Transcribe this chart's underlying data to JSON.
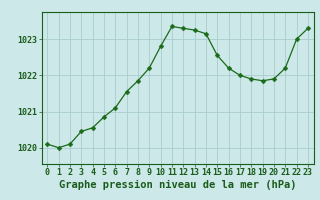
{
  "x": [
    0,
    1,
    2,
    3,
    4,
    5,
    6,
    7,
    8,
    9,
    10,
    11,
    12,
    13,
    14,
    15,
    16,
    17,
    18,
    19,
    20,
    21,
    22,
    23
  ],
  "y": [
    1020.1,
    1020.0,
    1020.1,
    1020.45,
    1020.55,
    1020.85,
    1021.1,
    1021.55,
    1021.85,
    1022.2,
    1022.8,
    1023.35,
    1023.3,
    1023.25,
    1023.15,
    1022.55,
    1022.2,
    1022.0,
    1021.9,
    1021.85,
    1021.9,
    1022.2,
    1023.0,
    1023.3
  ],
  "line_color": "#1a6b1a",
  "marker": "D",
  "marker_size": 2.5,
  "bg_color": "#cce8e8",
  "grid_color": "#aacccc",
  "axis_color": "#1a5c1a",
  "xlabel": "Graphe pression niveau de la mer (hPa)",
  "xlabel_fontsize": 7.5,
  "tick_fontsize": 6.0,
  "yticks": [
    1020,
    1021,
    1022,
    1023
  ],
  "xticks": [
    0,
    1,
    2,
    3,
    4,
    5,
    6,
    7,
    8,
    9,
    10,
    11,
    12,
    13,
    14,
    15,
    16,
    17,
    18,
    19,
    20,
    21,
    22,
    23
  ],
  "ylim": [
    1019.55,
    1023.75
  ],
  "xlim": [
    -0.5,
    23.5
  ]
}
